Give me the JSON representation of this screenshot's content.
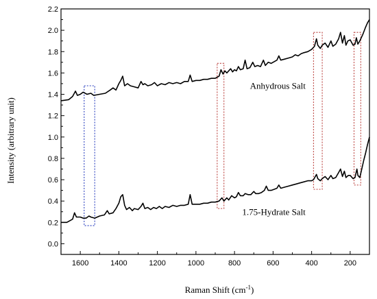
{
  "chart_data": {
    "type": "line",
    "title": "",
    "xlabel": "Raman Shift (cm",
    "xlabel_sup": "-1",
    "xlabel_end": ")",
    "ylabel": "Intensity (arbitrary unit)",
    "xlim": [
      1700,
      100
    ],
    "ylim": [
      -0.1,
      2.2
    ],
    "x_reversed": true,
    "grid": false,
    "legend": "none",
    "x_ticks": [
      1600,
      1400,
      1200,
      1000,
      800,
      600,
      400,
      200
    ],
    "x_tick_labels": [
      "1600",
      "1400",
      "1200",
      "1000",
      "800",
      "600",
      "400",
      "200"
    ],
    "y_ticks": [
      0.0,
      0.2,
      0.4,
      0.6,
      0.8,
      1.0,
      1.2,
      1.4,
      1.6,
      1.8,
      2.0,
      2.2
    ],
    "y_tick_labels": [
      "0.0",
      "0.2",
      "0.4",
      "0.6",
      "0.8",
      "1.0",
      "1.2",
      "1.4",
      "1.6",
      "1.8",
      "2.0",
      "2.2"
    ],
    "series": [
      {
        "label": "Anhydrous Salt",
        "color": "#000000",
        "points": [
          [
            1700,
            1.34
          ],
          [
            1660,
            1.35
          ],
          [
            1640,
            1.38
          ],
          [
            1625,
            1.43
          ],
          [
            1615,
            1.39
          ],
          [
            1600,
            1.4
          ],
          [
            1585,
            1.42
          ],
          [
            1565,
            1.4
          ],
          [
            1545,
            1.41
          ],
          [
            1530,
            1.39
          ],
          [
            1500,
            1.4
          ],
          [
            1470,
            1.41
          ],
          [
            1445,
            1.44
          ],
          [
            1430,
            1.46
          ],
          [
            1415,
            1.44
          ],
          [
            1400,
            1.5
          ],
          [
            1390,
            1.53
          ],
          [
            1380,
            1.57
          ],
          [
            1370,
            1.48
          ],
          [
            1355,
            1.5
          ],
          [
            1340,
            1.48
          ],
          [
            1320,
            1.47
          ],
          [
            1300,
            1.46
          ],
          [
            1285,
            1.52
          ],
          [
            1275,
            1.49
          ],
          [
            1265,
            1.5
          ],
          [
            1250,
            1.48
          ],
          [
            1230,
            1.49
          ],
          [
            1215,
            1.51
          ],
          [
            1200,
            1.48
          ],
          [
            1180,
            1.5
          ],
          [
            1160,
            1.49
          ],
          [
            1140,
            1.51
          ],
          [
            1120,
            1.5
          ],
          [
            1100,
            1.51
          ],
          [
            1080,
            1.5
          ],
          [
            1060,
            1.52
          ],
          [
            1040,
            1.52
          ],
          [
            1030,
            1.58
          ],
          [
            1020,
            1.52
          ],
          [
            1000,
            1.53
          ],
          [
            980,
            1.53
          ],
          [
            960,
            1.54
          ],
          [
            940,
            1.54
          ],
          [
            920,
            1.55
          ],
          [
            900,
            1.55
          ],
          [
            880,
            1.57
          ],
          [
            870,
            1.63
          ],
          [
            860,
            1.59
          ],
          [
            850,
            1.62
          ],
          [
            840,
            1.6
          ],
          [
            820,
            1.64
          ],
          [
            810,
            1.61
          ],
          [
            800,
            1.63
          ],
          [
            790,
            1.62
          ],
          [
            780,
            1.66
          ],
          [
            770,
            1.63
          ],
          [
            755,
            1.64
          ],
          [
            745,
            1.72
          ],
          [
            735,
            1.64
          ],
          [
            720,
            1.65
          ],
          [
            705,
            1.7
          ],
          [
            695,
            1.66
          ],
          [
            680,
            1.67
          ],
          [
            665,
            1.66
          ],
          [
            650,
            1.72
          ],
          [
            640,
            1.67
          ],
          [
            625,
            1.7
          ],
          [
            610,
            1.69
          ],
          [
            600,
            1.7
          ],
          [
            580,
            1.72
          ],
          [
            570,
            1.76
          ],
          [
            560,
            1.72
          ],
          [
            540,
            1.73
          ],
          [
            520,
            1.74
          ],
          [
            500,
            1.75
          ],
          [
            485,
            1.77
          ],
          [
            470,
            1.76
          ],
          [
            455,
            1.78
          ],
          [
            440,
            1.79
          ],
          [
            420,
            1.8
          ],
          [
            400,
            1.82
          ],
          [
            385,
            1.85
          ],
          [
            375,
            1.92
          ],
          [
            368,
            1.86
          ],
          [
            355,
            1.83
          ],
          [
            345,
            1.86
          ],
          [
            330,
            1.88
          ],
          [
            315,
            1.84
          ],
          [
            300,
            1.9
          ],
          [
            290,
            1.85
          ],
          [
            275,
            1.87
          ],
          [
            260,
            1.92
          ],
          [
            250,
            1.98
          ],
          [
            240,
            1.88
          ],
          [
            230,
            1.95
          ],
          [
            222,
            1.86
          ],
          [
            212,
            1.9
          ],
          [
            200,
            1.91
          ],
          [
            185,
            1.86
          ],
          [
            175,
            1.87
          ],
          [
            168,
            1.93
          ],
          [
            160,
            1.87
          ],
          [
            150,
            1.9
          ],
          [
            135,
            1.96
          ],
          [
            120,
            2.03
          ],
          [
            110,
            2.07
          ],
          [
            100,
            2.1
          ]
        ]
      },
      {
        "label": "1.75-Hydrate Salt",
        "color": "#000000",
        "points": [
          [
            1700,
            0.2
          ],
          [
            1670,
            0.2
          ],
          [
            1650,
            0.22
          ],
          [
            1640,
            0.23
          ],
          [
            1630,
            0.29
          ],
          [
            1620,
            0.25
          ],
          [
            1600,
            0.25
          ],
          [
            1585,
            0.24
          ],
          [
            1570,
            0.24
          ],
          [
            1555,
            0.26
          ],
          [
            1545,
            0.25
          ],
          [
            1525,
            0.24
          ],
          [
            1500,
            0.26
          ],
          [
            1475,
            0.27
          ],
          [
            1460,
            0.31
          ],
          [
            1450,
            0.28
          ],
          [
            1430,
            0.29
          ],
          [
            1415,
            0.33
          ],
          [
            1400,
            0.38
          ],
          [
            1390,
            0.44
          ],
          [
            1380,
            0.46
          ],
          [
            1370,
            0.36
          ],
          [
            1360,
            0.32
          ],
          [
            1345,
            0.34
          ],
          [
            1330,
            0.31
          ],
          [
            1320,
            0.33
          ],
          [
            1300,
            0.32
          ],
          [
            1285,
            0.35
          ],
          [
            1275,
            0.38
          ],
          [
            1265,
            0.33
          ],
          [
            1250,
            0.34
          ],
          [
            1235,
            0.32
          ],
          [
            1220,
            0.34
          ],
          [
            1205,
            0.33
          ],
          [
            1190,
            0.35
          ],
          [
            1175,
            0.33
          ],
          [
            1160,
            0.35
          ],
          [
            1140,
            0.34
          ],
          [
            1120,
            0.36
          ],
          [
            1100,
            0.35
          ],
          [
            1080,
            0.36
          ],
          [
            1060,
            0.36
          ],
          [
            1040,
            0.37
          ],
          [
            1030,
            0.46
          ],
          [
            1020,
            0.37
          ],
          [
            1000,
            0.37
          ],
          [
            980,
            0.37
          ],
          [
            960,
            0.38
          ],
          [
            940,
            0.38
          ],
          [
            920,
            0.39
          ],
          [
            900,
            0.39
          ],
          [
            880,
            0.4
          ],
          [
            865,
            0.43
          ],
          [
            855,
            0.4
          ],
          [
            840,
            0.43
          ],
          [
            830,
            0.41
          ],
          [
            815,
            0.45
          ],
          [
            800,
            0.43
          ],
          [
            790,
            0.44
          ],
          [
            780,
            0.48
          ],
          [
            770,
            0.45
          ],
          [
            755,
            0.45
          ],
          [
            745,
            0.47
          ],
          [
            730,
            0.46
          ],
          [
            715,
            0.46
          ],
          [
            700,
            0.49
          ],
          [
            690,
            0.47
          ],
          [
            675,
            0.47
          ],
          [
            660,
            0.48
          ],
          [
            645,
            0.5
          ],
          [
            635,
            0.54
          ],
          [
            625,
            0.5
          ],
          [
            610,
            0.5
          ],
          [
            595,
            0.51
          ],
          [
            580,
            0.52
          ],
          [
            570,
            0.55
          ],
          [
            560,
            0.52
          ],
          [
            540,
            0.53
          ],
          [
            520,
            0.54
          ],
          [
            500,
            0.55
          ],
          [
            480,
            0.56
          ],
          [
            460,
            0.57
          ],
          [
            440,
            0.58
          ],
          [
            420,
            0.59
          ],
          [
            400,
            0.59
          ],
          [
            390,
            0.6
          ],
          [
            375,
            0.65
          ],
          [
            368,
            0.61
          ],
          [
            355,
            0.59
          ],
          [
            345,
            0.61
          ],
          [
            330,
            0.63
          ],
          [
            315,
            0.6
          ],
          [
            300,
            0.64
          ],
          [
            290,
            0.61
          ],
          [
            275,
            0.62
          ],
          [
            262,
            0.66
          ],
          [
            250,
            0.7
          ],
          [
            240,
            0.63
          ],
          [
            230,
            0.68
          ],
          [
            222,
            0.62
          ],
          [
            210,
            0.64
          ],
          [
            200,
            0.64
          ],
          [
            185,
            0.61
          ],
          [
            175,
            0.62
          ],
          [
            165,
            0.7
          ],
          [
            160,
            0.64
          ],
          [
            150,
            0.62
          ],
          [
            140,
            0.7
          ],
          [
            130,
            0.78
          ],
          [
            120,
            0.85
          ],
          [
            110,
            0.93
          ],
          [
            100,
            1.0
          ]
        ]
      }
    ],
    "annotations": [
      {
        "text": "Anhydrous Salt",
        "x": 720,
        "y": 1.45
      },
      {
        "text": "1.75-Hydrate Salt",
        "x": 760,
        "y": 0.27
      }
    ],
    "highlight_boxes": [
      {
        "x0": 1580,
        "x1": 1525,
        "y0": 0.17,
        "y1": 1.48,
        "color": "#3b4fc4"
      },
      {
        "x0": 890,
        "x1": 855,
        "y0": 0.33,
        "y1": 1.69,
        "color": "#c0504d"
      },
      {
        "x0": 390,
        "x1": 345,
        "y0": 0.51,
        "y1": 1.98,
        "color": "#c0504d"
      },
      {
        "x0": 180,
        "x1": 145,
        "y0": 0.55,
        "y1": 1.98,
        "color": "#c0504d"
      }
    ]
  }
}
